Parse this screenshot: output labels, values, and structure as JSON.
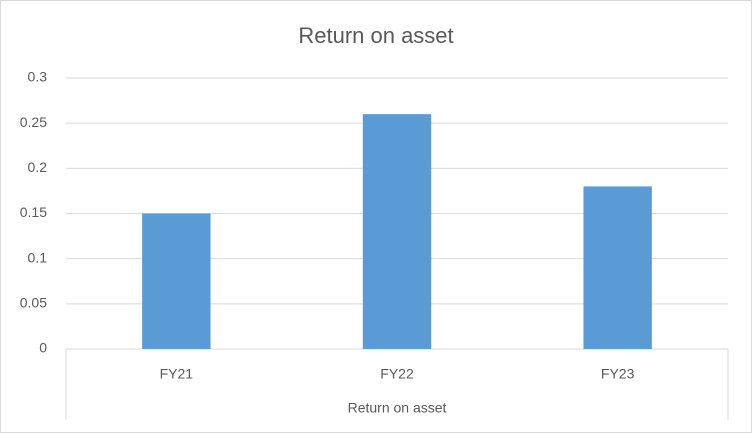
{
  "chart_data": {
    "type": "bar",
    "title": "Return on asset",
    "categories": [
      "FY21",
      "FY22",
      "FY23"
    ],
    "values": [
      0.15,
      0.26,
      0.18
    ],
    "color": "#5b9bd5",
    "xlabel": "Return on asset",
    "ylim": [
      0,
      0.3
    ],
    "yticks": [
      0,
      0.05,
      0.1,
      0.15,
      0.2,
      0.25,
      0.3
    ],
    "grid": true
  }
}
